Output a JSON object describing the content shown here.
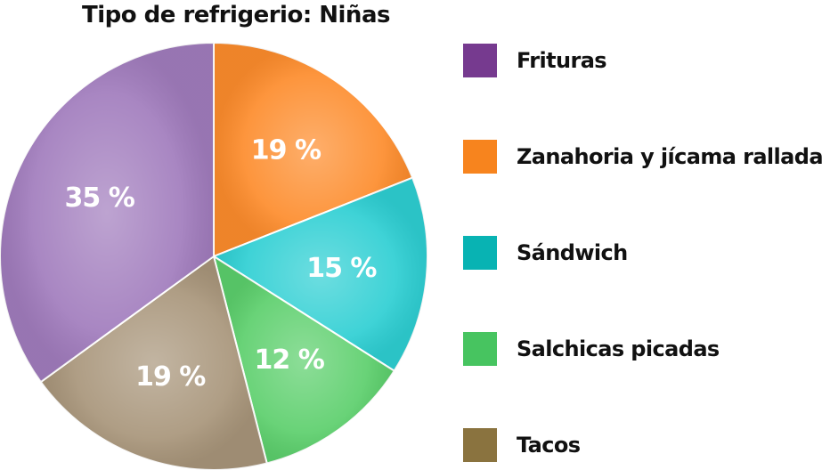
{
  "chart_data": {
    "type": "pie",
    "title": "Tipo de refrigerio: Niñas",
    "slices": [
      {
        "label": "Zanahoria y jícama rallada",
        "value": 19,
        "value_label": "19 %",
        "color": "#fd8c2c",
        "legend_color": "#f7841e"
      },
      {
        "label": "Sándwich",
        "value": 15,
        "value_label": "15 %",
        "color": "#2ecfd3",
        "legend_color": "#08b3b3"
      },
      {
        "label": "Salchicas picadas",
        "value": 12,
        "value_label": "12 %",
        "color": "#5ccf6c",
        "legend_color": "#47c460"
      },
      {
        "label": "Tacos",
        "value": 19,
        "value_label": "19 %",
        "color": "#a8957a",
        "legend_color": "#8a733f"
      },
      {
        "label": "Frituras",
        "value": 35,
        "value_label": "35 %",
        "color": "#a17cbd",
        "legend_color": "#763a8f"
      }
    ],
    "legend": [
      "Frituras",
      "Zanahoria y jícama rallada",
      "Sándwich",
      "Salchicas picadas",
      "Tacos"
    ],
    "legend_position": "right",
    "start": "top",
    "direction": "clockwise"
  }
}
